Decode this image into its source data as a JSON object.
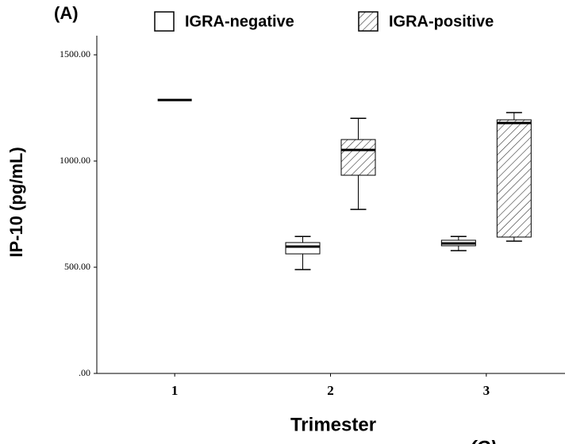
{
  "chart_data": {
    "type": "box",
    "annotations": [
      "(A)",
      "(C)"
    ],
    "x_label": "Trimester",
    "y_label": "IP-10 (pg/mL)",
    "categories": [
      "1",
      "2",
      "3"
    ],
    "series": [
      {
        "name": "IGRA-negative",
        "color": "#000000",
        "hatch": false,
        "boxes": [
          {
            "median": 1287
          },
          {
            "min": 489,
            "q1": 563,
            "median": 597,
            "q3": 616,
            "max": 645
          },
          {
            "min": 578,
            "q1": 601,
            "median": 612,
            "q3": 627,
            "max": 645
          }
        ]
      },
      {
        "name": "IGRA-positive",
        "color": "#000000",
        "hatch": true,
        "boxes": [
          null,
          {
            "min": 772,
            "q1": 933,
            "median": 1052,
            "q3": 1101,
            "max": 1201
          },
          {
            "min": 623,
            "q1": 642,
            "median": 1179,
            "q3": 1194,
            "max": 1228
          }
        ]
      }
    ],
    "ylim": [
      0,
      1590
    ],
    "yticks": [
      {
        "value": 0,
        "label": ".00"
      },
      {
        "value": 500,
        "label": "500.00"
      },
      {
        "value": 1000,
        "label": "1000.00"
      },
      {
        "value": 1500,
        "label": "1500.00"
      }
    ]
  }
}
